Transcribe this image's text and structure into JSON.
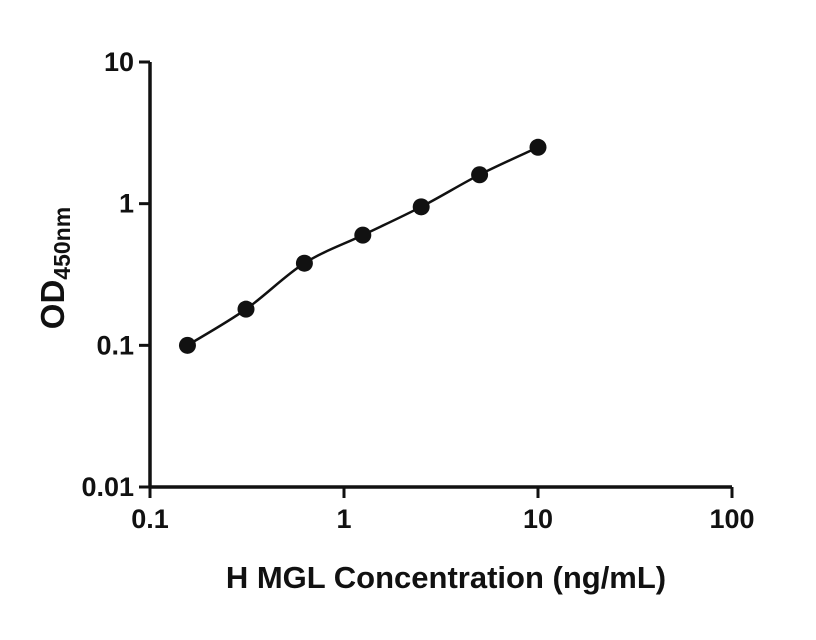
{
  "chart_data": {
    "type": "scatter",
    "title": "",
    "xlabel": "H MGL Concentration (ng/mL)",
    "ylabel_main": "OD",
    "ylabel_sub": "450nm",
    "x_scale": "log",
    "y_scale": "log",
    "xlim": [
      0.1,
      100
    ],
    "ylim": [
      0.01,
      10
    ],
    "x_ticks": [
      0.1,
      1,
      10,
      100
    ],
    "x_tick_labels": [
      "0.1",
      "1",
      "10",
      "100"
    ],
    "y_ticks": [
      0.01,
      0.1,
      1,
      10
    ],
    "y_tick_labels": [
      "0.01",
      "0.1",
      "1",
      "10"
    ],
    "grid": false,
    "legend": false,
    "series": [
      {
        "x": [
          0.156,
          0.3125,
          0.625,
          1.25,
          2.5,
          5,
          10
        ],
        "y": [
          0.1,
          0.18,
          0.38,
          0.6,
          0.95,
          1.6,
          2.5
        ],
        "marker": "circle",
        "marker_color": "#111111",
        "line_color": "#111111"
      }
    ]
  },
  "colors": {
    "background": "#ffffff",
    "axis": "#111111"
  }
}
